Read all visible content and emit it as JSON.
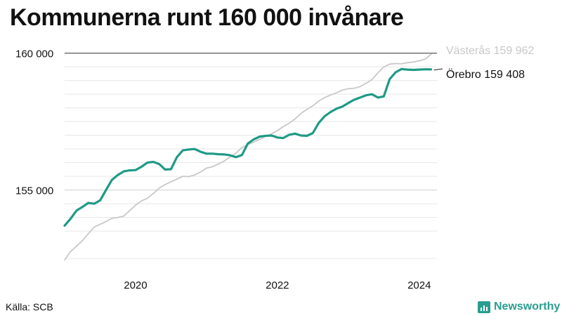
{
  "title": "Kommunerna runt 160 000 invånare",
  "source": "Källa: SCB",
  "brand": {
    "name": "Newsworthy",
    "icon": "bar-chart-logo-icon",
    "color": "#2a9d8f"
  },
  "chart_data": {
    "type": "line",
    "title": "Kommunerna runt 160 000 invånare",
    "xlabel": "",
    "ylabel": "",
    "xlim": [
      2019.0,
      2024.25
    ],
    "ylim": [
      152400,
      160300
    ],
    "y_ticks": [
      {
        "value": 155000,
        "label": "155 000"
      },
      {
        "value": 160000,
        "label": "160 000"
      }
    ],
    "x_ticks": [
      {
        "value": 2020,
        "label": "2020"
      },
      {
        "value": 2022,
        "label": "2022"
      },
      {
        "value": 2024,
        "label": "2024"
      }
    ],
    "minor_gridlines_y": [
      152500,
      153500,
      154000,
      154500,
      155500,
      156000,
      156500,
      157000,
      157500,
      158000,
      158500,
      159000,
      159500
    ],
    "grid": true,
    "legend": "direct labels at line ends",
    "series": [
      {
        "name": "Västerås",
        "end_label": "Västerås 159 962",
        "color": "#c8c8c8",
        "x": [
          2019.0,
          2019.083,
          2019.167,
          2019.25,
          2019.333,
          2019.417,
          2019.5,
          2019.583,
          2019.667,
          2019.75,
          2019.833,
          2019.917,
          2020.0,
          2020.083,
          2020.167,
          2020.25,
          2020.333,
          2020.417,
          2020.5,
          2020.583,
          2020.667,
          2020.75,
          2020.833,
          2020.917,
          2021.0,
          2021.083,
          2021.167,
          2021.25,
          2021.333,
          2021.417,
          2021.5,
          2021.583,
          2021.667,
          2021.75,
          2021.833,
          2021.917,
          2022.0,
          2022.083,
          2022.167,
          2022.25,
          2022.333,
          2022.417,
          2022.5,
          2022.583,
          2022.667,
          2022.75,
          2022.833,
          2022.917,
          2023.0,
          2023.083,
          2023.167,
          2023.25,
          2023.333,
          2023.417,
          2023.5,
          2023.583,
          2023.667,
          2023.75,
          2023.833,
          2023.917,
          2024.0,
          2024.083,
          2024.167
        ],
        "y": [
          152450,
          152750,
          152950,
          153150,
          153400,
          153650,
          153750,
          153850,
          153970,
          154000,
          154050,
          154250,
          154450,
          154600,
          154700,
          154870,
          155070,
          155200,
          155300,
          155400,
          155500,
          155490,
          155550,
          155660,
          155800,
          155850,
          155950,
          156060,
          156200,
          156350,
          156550,
          156660,
          156750,
          156850,
          156960,
          157050,
          157170,
          157320,
          157440,
          157600,
          157800,
          157950,
          158080,
          158250,
          158380,
          158470,
          158550,
          158650,
          158700,
          158720,
          158780,
          158900,
          159030,
          159280,
          159500,
          159600,
          159620,
          159610,
          159650,
          159680,
          159720,
          159780,
          159960
        ]
      },
      {
        "name": "Örebro",
        "end_label": "Örebro 159 408",
        "color": "#1f9a86",
        "x": [
          2019.0,
          2019.083,
          2019.167,
          2019.25,
          2019.333,
          2019.417,
          2019.5,
          2019.583,
          2019.667,
          2019.75,
          2019.833,
          2019.917,
          2020.0,
          2020.083,
          2020.167,
          2020.25,
          2020.333,
          2020.417,
          2020.5,
          2020.583,
          2020.667,
          2020.75,
          2020.833,
          2020.917,
          2021.0,
          2021.083,
          2021.167,
          2021.25,
          2021.333,
          2021.417,
          2021.5,
          2021.583,
          2021.667,
          2021.75,
          2021.833,
          2021.917,
          2022.0,
          2022.083,
          2022.167,
          2022.25,
          2022.333,
          2022.417,
          2022.5,
          2022.583,
          2022.667,
          2022.75,
          2022.833,
          2022.917,
          2023.0,
          2023.083,
          2023.167,
          2023.25,
          2023.333,
          2023.417,
          2023.5,
          2023.583,
          2023.667,
          2023.75,
          2023.833,
          2023.917,
          2024.0,
          2024.083,
          2024.167
        ],
        "y": [
          153700,
          153950,
          154250,
          154380,
          154530,
          154500,
          154620,
          155000,
          155370,
          155550,
          155680,
          155720,
          155730,
          155850,
          156000,
          156030,
          155950,
          155750,
          155760,
          156200,
          156450,
          156480,
          156500,
          156400,
          156330,
          156330,
          156310,
          156300,
          156270,
          156200,
          156280,
          156700,
          156850,
          156950,
          156980,
          156990,
          156920,
          156900,
          157020,
          157060,
          156990,
          156980,
          157080,
          157450,
          157700,
          157850,
          157970,
          158050,
          158180,
          158300,
          158380,
          158460,
          158500,
          158380,
          158420,
          159050,
          159300,
          159420,
          159400,
          159390,
          159400,
          159410,
          159408
        ]
      }
    ]
  }
}
